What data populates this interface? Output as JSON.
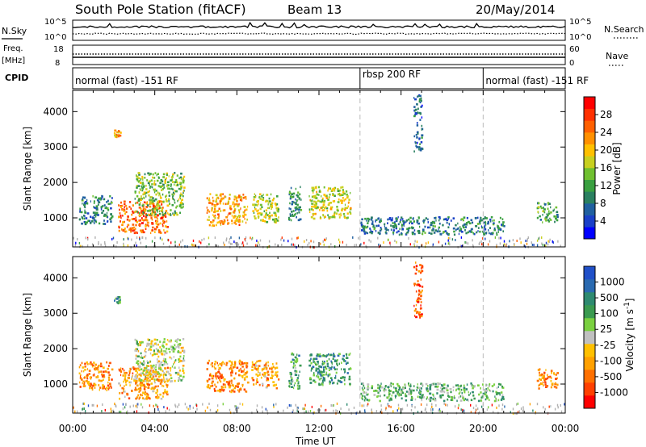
{
  "header": {
    "station": "South Pole Station (fitACF)",
    "beam": "Beam 13",
    "date": "20/May/2014"
  },
  "strip_labels": {
    "nsky": "N.Sky",
    "nsearch": "N.Search",
    "nsky_top": "10^5",
    "nsky_bottom": "10^0",
    "nsearch_top": "10^5",
    "nsearch_bottom": "10^0",
    "freq_line1": "Freq.",
    "freq_line2": "[MHz]",
    "freq_top": "18",
    "freq_bottom": "8",
    "nave": "Nave",
    "nave_top": "60",
    "nave_bottom": "0",
    "cpid": "CPID"
  },
  "cpid_segments": [
    {
      "label": "normal (fast) -151 RF",
      "start_hour": 0,
      "end_hour": 14
    },
    {
      "label": "rbsp 200 RF",
      "start_hour": 14,
      "end_hour": 20
    },
    {
      "label": "normal (fast) -151 RF",
      "start_hour": 20,
      "end_hour": 24
    }
  ],
  "chart_data": [
    {
      "type": "heatmap",
      "title": "",
      "xlabel": "Time UT",
      "ylabel": "Slant Range [km]",
      "xlim": [
        0,
        24
      ],
      "ylim": [
        180,
        4600
      ],
      "x_ticks": [
        "00:00",
        "04:00",
        "08:00",
        "12:00",
        "16:00",
        "20:00",
        "00:00"
      ],
      "y_ticks": [
        "1000",
        "2000",
        "3000",
        "4000"
      ],
      "colorbar": {
        "label": "Power [dB]",
        "ticks": [
          "4",
          "8",
          "12",
          "16",
          "20",
          "24",
          "28"
        ],
        "colors": [
          "#0000ff",
          "#1a40c8",
          "#2060a0",
          "#2a8060",
          "#3aa040",
          "#70c030",
          "#c8d020",
          "#ffc000",
          "#ff9000",
          "#ff6000",
          "#ff3000",
          "#ff0000"
        ]
      },
      "echo_regions": [
        {
          "t0": 0.3,
          "t1": 1.9,
          "r0": 850,
          "r1": 1650,
          "level": 0.25
        },
        {
          "t0": 2.2,
          "t1": 4.6,
          "r0": 600,
          "r1": 1500,
          "level": 0.8
        },
        {
          "t0": 3.0,
          "t1": 5.4,
          "r0": 1100,
          "r1": 2300,
          "level": 0.45
        },
        {
          "t0": 6.5,
          "t1": 8.5,
          "r0": 800,
          "r1": 1700,
          "level": 0.7
        },
        {
          "t0": 8.7,
          "t1": 10.0,
          "r0": 900,
          "r1": 1700,
          "level": 0.5
        },
        {
          "t0": 10.5,
          "t1": 11.1,
          "r0": 900,
          "r1": 1900,
          "level": 0.3
        },
        {
          "t0": 11.5,
          "t1": 13.5,
          "r0": 1000,
          "r1": 1900,
          "level": 0.55
        },
        {
          "t0": 14.0,
          "t1": 21.0,
          "r0": 550,
          "r1": 1050,
          "level": 0.25
        },
        {
          "t0": 22.6,
          "t1": 23.6,
          "r0": 900,
          "r1": 1450,
          "level": 0.35
        },
        {
          "t0": 2.0,
          "t1": 2.3,
          "r0": 3300,
          "r1": 3500,
          "level": 0.7
        },
        {
          "t0": 16.6,
          "t1": 17.0,
          "r0": 2900,
          "r1": 4500,
          "level": 0.2
        }
      ]
    },
    {
      "type": "heatmap",
      "title": "",
      "xlabel": "Time UT",
      "ylabel": "Slant Range [km]",
      "xlim": [
        0,
        24
      ],
      "ylim": [
        180,
        4600
      ],
      "x_ticks": [
        "00:00",
        "04:00",
        "08:00",
        "12:00",
        "16:00",
        "20:00",
        "00:00"
      ],
      "y_ticks": [
        "1000",
        "2000",
        "3000",
        "4000"
      ],
      "colorbar": {
        "label": "Velocity [m s^-1]",
        "ticks": [
          "1000",
          "500",
          "100",
          "25",
          "-25",
          "-100",
          "-500",
          "-1000"
        ],
        "colors": [
          "#2050c8",
          "#2a6ab0",
          "#2e8a70",
          "#3a9a50",
          "#7ad040",
          "#c0c0c0",
          "#ffc000",
          "#ffa000",
          "#ff7000",
          "#ff4000",
          "#ff0000"
        ]
      },
      "echo_regions": [
        {
          "t0": 0.3,
          "t1": 1.9,
          "r0": 850,
          "r1": 1650,
          "level": 0.75
        },
        {
          "t0": 2.2,
          "t1": 4.6,
          "r0": 600,
          "r1": 1500,
          "level": 0.7
        },
        {
          "t0": 3.0,
          "t1": 5.4,
          "r0": 1100,
          "r1": 2300,
          "level": 0.5
        },
        {
          "t0": 6.5,
          "t1": 8.5,
          "r0": 800,
          "r1": 1700,
          "level": 0.75
        },
        {
          "t0": 8.7,
          "t1": 10.0,
          "r0": 900,
          "r1": 1700,
          "level": 0.7
        },
        {
          "t0": 10.5,
          "t1": 11.1,
          "r0": 900,
          "r1": 1900,
          "level": 0.3
        },
        {
          "t0": 11.5,
          "t1": 13.5,
          "r0": 1000,
          "r1": 1900,
          "level": 0.25
        },
        {
          "t0": 14.0,
          "t1": 21.0,
          "r0": 550,
          "r1": 1050,
          "level": 0.35
        },
        {
          "t0": 22.6,
          "t1": 23.6,
          "r0": 900,
          "r1": 1450,
          "level": 0.75
        },
        {
          "t0": 2.0,
          "t1": 2.3,
          "r0": 3300,
          "r1": 3500,
          "level": 0.3
        },
        {
          "t0": 16.6,
          "t1": 17.0,
          "r0": 2900,
          "r1": 4500,
          "level": 0.85
        }
      ]
    }
  ]
}
